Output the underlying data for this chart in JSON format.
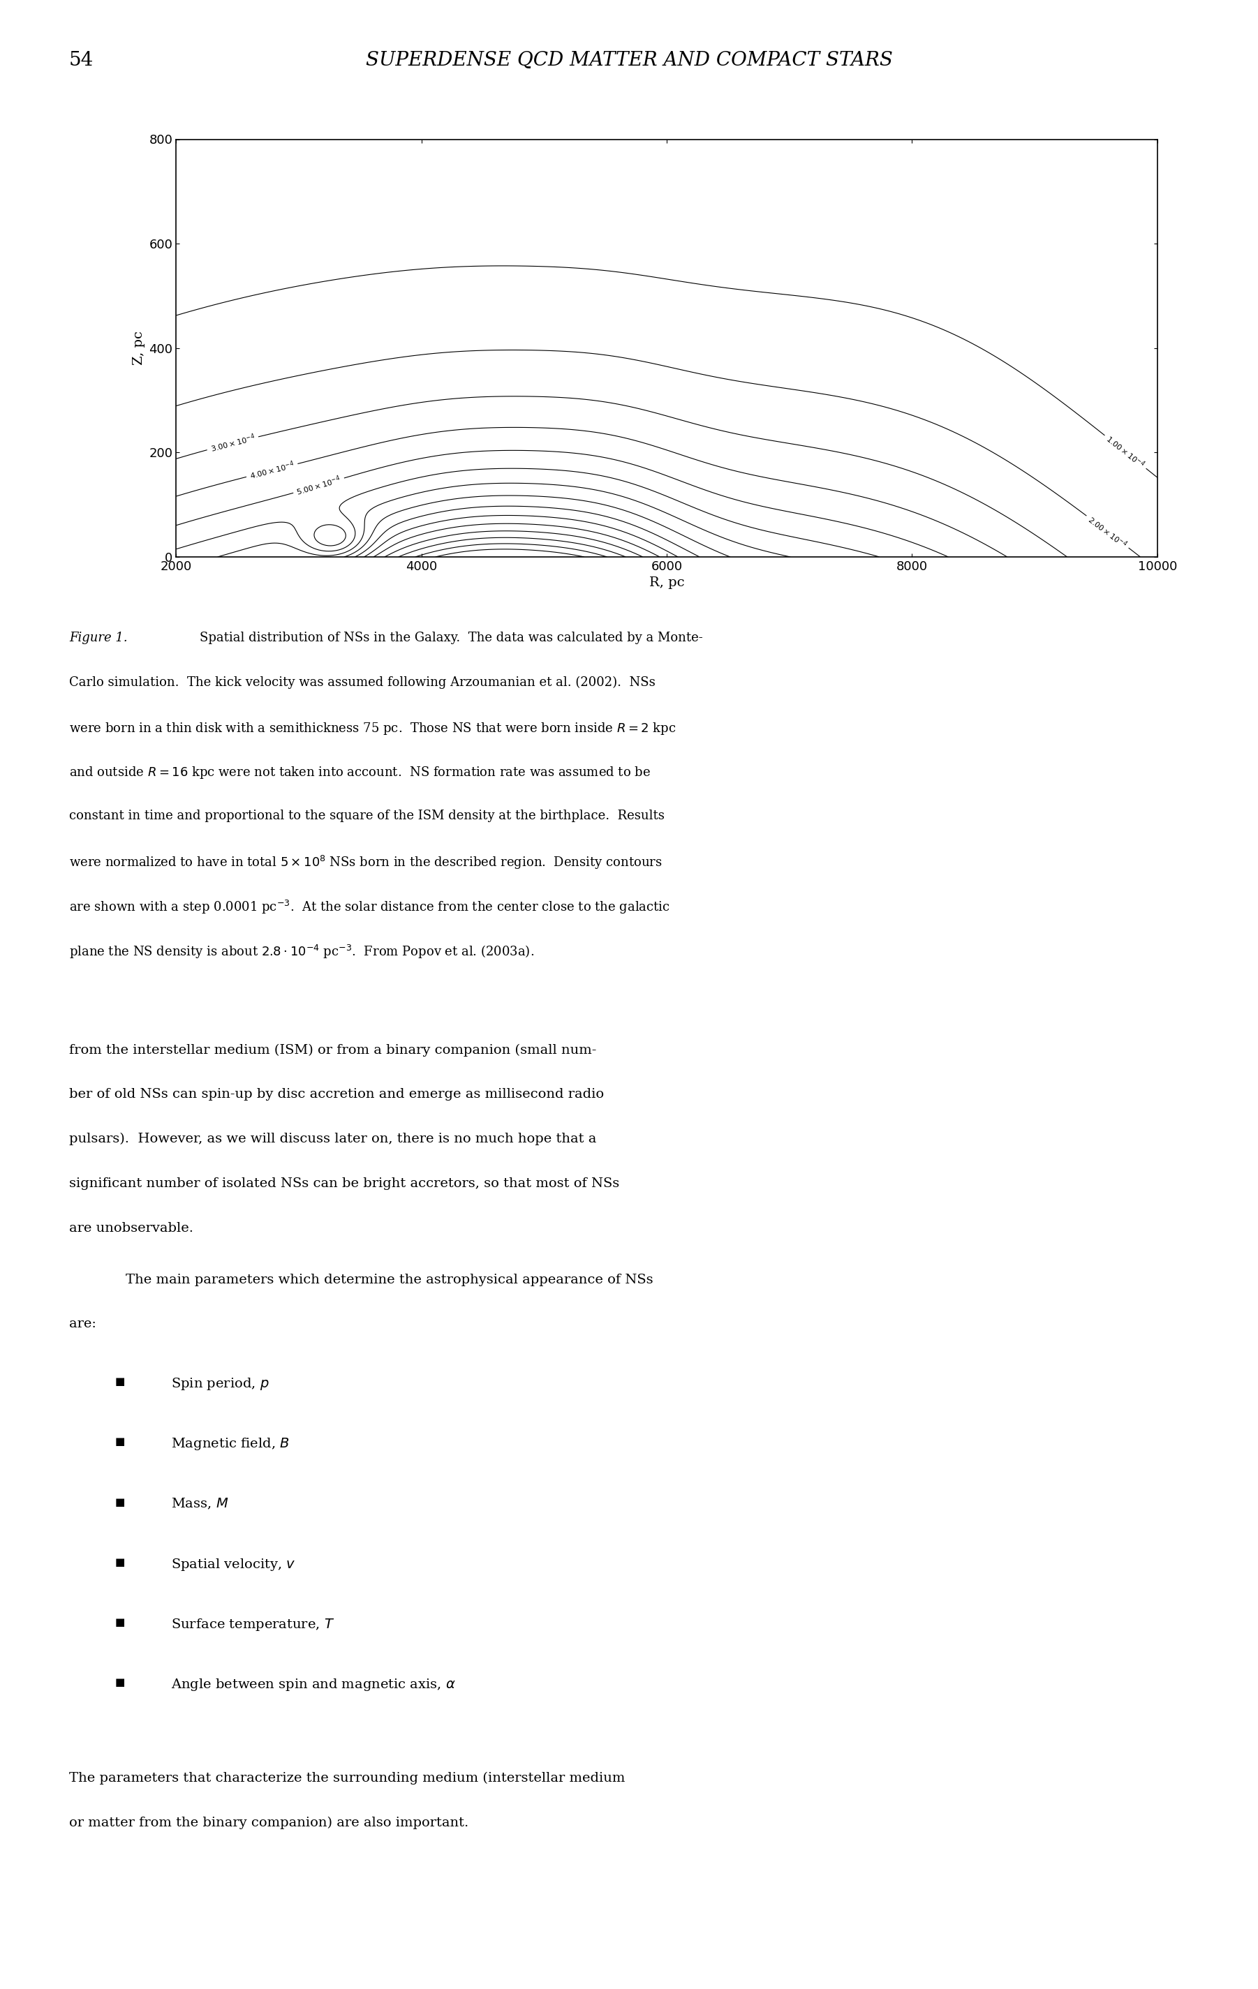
{
  "page_title": "54",
  "header_title": "SUPERDENSE QCD MATTER AND COMPACT STARS",
  "xlabel": "R, pc",
  "ylabel": "Z, pc",
  "xlim": [
    2000,
    10000
  ],
  "ylim": [
    0,
    800
  ],
  "xticks": [
    2000,
    4000,
    6000,
    8000,
    10000
  ],
  "yticks": [
    0,
    200,
    400,
    600,
    800
  ],
  "contour_levels": [
    0.0001,
    0.0002,
    0.0003,
    0.0004,
    0.0005,
    0.0006,
    0.0007,
    0.0008,
    0.0009,
    0.001,
    0.0011,
    0.0012,
    0.0013,
    0.0014,
    0.0015
  ],
  "figure_caption_label": "Figure 1.",
  "figure_caption": "Spatial distribution of NSs in the Galaxy.  The data was calculated by a Monte-Carlo simulation.  The kick velocity was assumed following Arzoumanian et al. (2002).  NSs were born in a thin disk with a semithickness 75 pc.  Those NS that were born inside $R = 2$ kpc and outside $R = 16$ kpc were not taken into account.  NS formation rate was assumed to be constant in time and proportional to the square of the ISM density at the birthplace.  Results were normalized to have in total $5 \\times 10^8$ NSs born in the described region.  Density contours are shown with a step 0.0001 pc$^{-3}$.  At the solar distance from the center close to the galactic plane the NS density is about $2.8 \\cdot 10^{-4}$ pc$^{-3}$.  From Popov et al. (2003a).",
  "body_text": "from the interstellar medium (ISM) or from a binary companion (small number of old NSs can spin-up by disc accretion and emerge as millisecond radio pulsars).  However, as we will discuss later on, there is no much hope that a significant number of isolated NSs can be bright accretors, so that most of NSs are unobservable.\n    The main parameters which determine the astrophysical appearance of NSs are:",
  "bullet_items": [
    "Spin period, $p$",
    "Magnetic field, $B$",
    "Mass, $M$",
    "Spatial velocity, $v$",
    "Surface temperature, $T$",
    "Angle between spin and magnetic axis, $\\alpha$"
  ],
  "closing_text": "The parameters that characterize the surrounding medium (interstellar medium or matter from the binary companion) are also important.",
  "background_color": "#ffffff",
  "text_color": "#000000",
  "contour_color": "#000000"
}
